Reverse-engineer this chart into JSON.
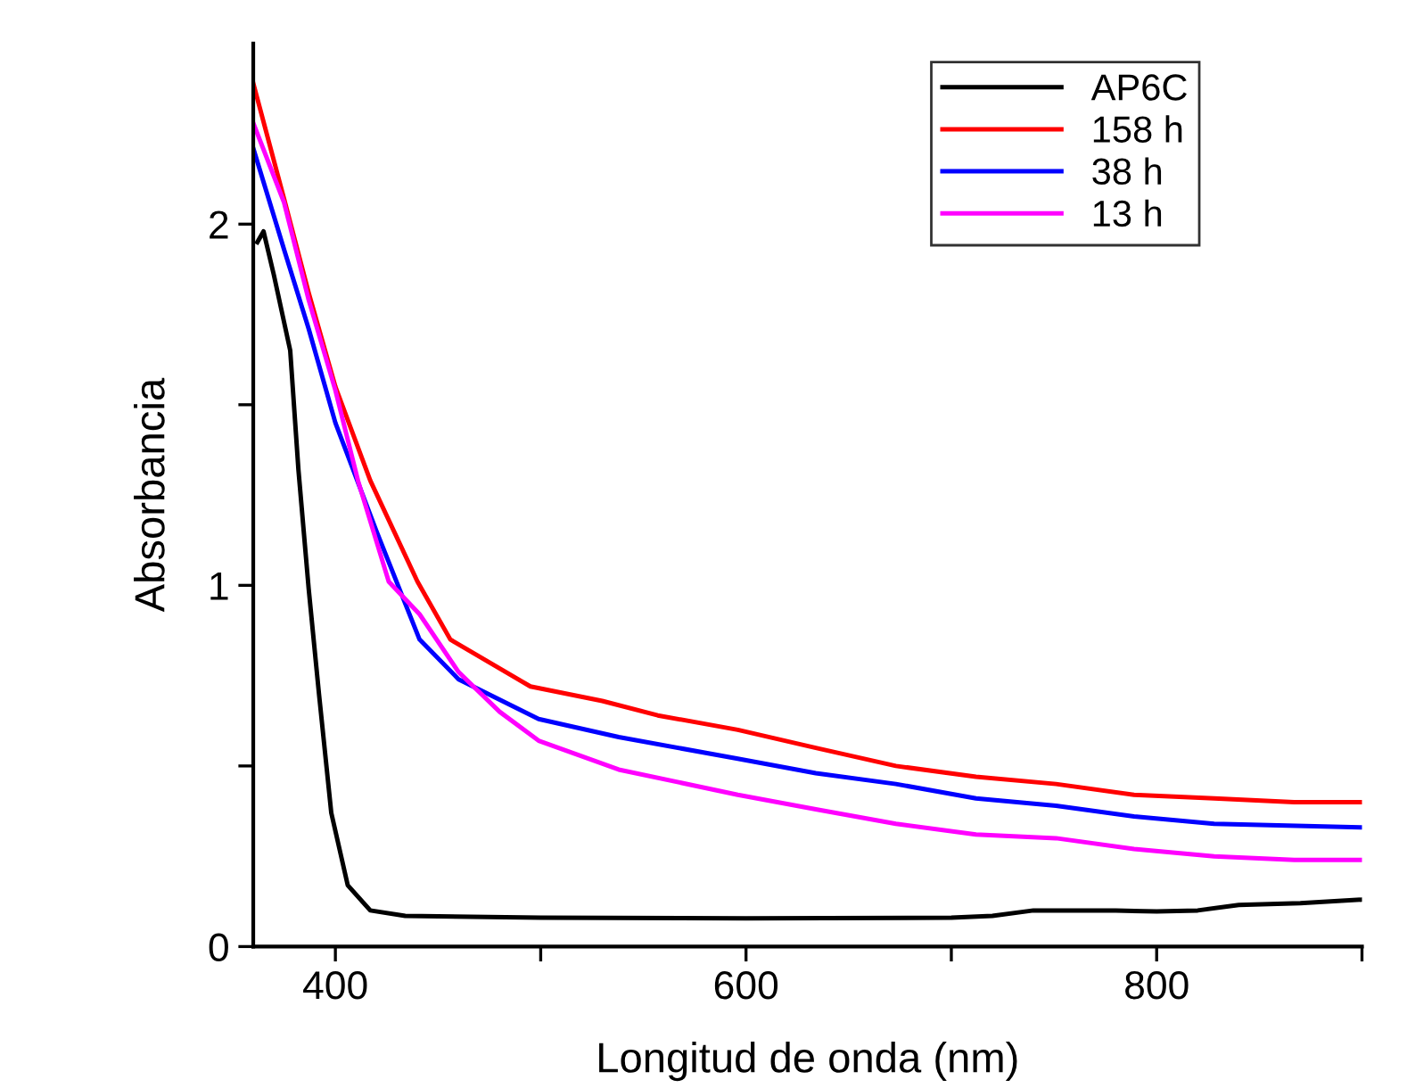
{
  "chart_data": {
    "type": "line",
    "xlabel": "Longitud de onda (nm)",
    "ylabel": "Absorbancia",
    "xlim": [
      360,
      900
    ],
    "ylim": [
      0,
      2.5
    ],
    "xticks": [
      400,
      {
        "value": 500,
        "label": null
      },
      600,
      {
        "value": 700,
        "label": null
      },
      800,
      {
        "value": 900,
        "label": null
      }
    ],
    "yticks": [
      0,
      {
        "value": 0.5,
        "label": null
      },
      1,
      {
        "value": 1.5,
        "label": null
      },
      2
    ],
    "legend": "top right",
    "grid": false,
    "line_style": "solid",
    "marker": "none",
    "series": [
      {
        "name": "AP6C",
        "color": "#000000",
        "x": [
          362,
          365,
          370,
          378,
          382,
          387,
          392,
          398,
          406,
          417,
          434,
          500,
          600,
          700,
          720,
          740,
          780,
          800,
          820,
          840,
          870,
          900
        ],
        "values": [
          1.95,
          1.98,
          1.86,
          1.65,
          1.32,
          0.99,
          0.7,
          0.37,
          0.17,
          0.1,
          0.085,
          0.08,
          0.078,
          0.08,
          0.085,
          0.1,
          0.1,
          0.097,
          0.1,
          0.115,
          0.12,
          0.13
        ]
      },
      {
        "name": "158 h",
        "color": "#ff0000",
        "x": [
          360,
          375,
          387,
          400,
          417,
          440,
          456,
          495,
          530,
          557,
          596,
          634,
          673,
          712,
          751,
          789,
          828,
          867,
          900
        ],
        "values": [
          2.39,
          2.07,
          1.81,
          1.55,
          1.29,
          1.01,
          0.85,
          0.72,
          0.68,
          0.64,
          0.6,
          0.55,
          0.5,
          0.47,
          0.45,
          0.42,
          0.41,
          0.4,
          0.4
        ]
      },
      {
        "name": "38 h",
        "color": "#0000ff",
        "x": [
          360,
          375,
          387,
          400,
          420,
          441,
          460,
          499,
          538,
          596,
          634,
          673,
          712,
          751,
          789,
          828,
          900
        ],
        "values": [
          2.21,
          1.93,
          1.71,
          1.45,
          1.15,
          0.85,
          0.74,
          0.63,
          0.58,
          0.52,
          0.48,
          0.45,
          0.41,
          0.39,
          0.36,
          0.34,
          0.33
        ]
      },
      {
        "name": "13 h",
        "color": "#ff00ff",
        "x": [
          360,
          375,
          387,
          400,
          411,
          426,
          441,
          460,
          480,
          499,
          538,
          596,
          634,
          673,
          712,
          751,
          789,
          828,
          867,
          900
        ],
        "values": [
          2.28,
          2.06,
          1.79,
          1.54,
          1.29,
          1.01,
          0.92,
          0.76,
          0.65,
          0.57,
          0.49,
          0.42,
          0.38,
          0.34,
          0.31,
          0.3,
          0.27,
          0.25,
          0.24,
          0.24
        ]
      }
    ]
  }
}
